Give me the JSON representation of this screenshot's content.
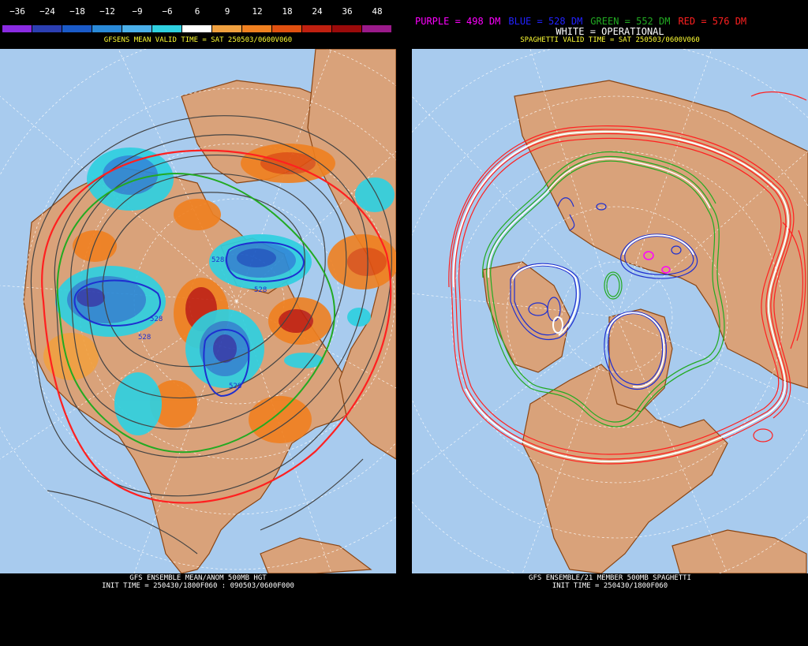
{
  "left": {
    "scale": {
      "values": [
        "−36",
        "−24",
        "−18",
        "−12",
        "−9",
        "−6",
        "6",
        "9",
        "12",
        "18",
        "24",
        "36",
        "48"
      ],
      "colors": [
        "#8a2be2",
        "#2c3fb2",
        "#1a5ac8",
        "#2a8ad8",
        "#4bb0ea",
        "#2fd0e0",
        "#ffffff",
        "#f0a040",
        "#f08020",
        "#e05010",
        "#c02010",
        "#9a0a0a",
        "#9a1a8a"
      ]
    },
    "valid_time": "GFSENS MEAN VALID TIME = SAT 250503/0600V060",
    "footer_line1": "GFS ENSEMBLE MEAN/ANOM 500MB HGT",
    "footer_line2": "INIT TIME = 250430/1800F060 : 090503/0600F000",
    "contour_labels": [
      "528",
      "528",
      "528",
      "528",
      "528"
    ]
  },
  "right": {
    "legend": [
      {
        "text": "PURPLE = 498 DM",
        "color": "#ff00ff"
      },
      {
        "text": "BLUE = 528 DM",
        "color": "#2222ff"
      },
      {
        "text": "GREEN = 552 DM",
        "color": "#22aa22"
      },
      {
        "text": "RED = 576 DM",
        "color": "#ff2020"
      }
    ],
    "operational": "WHITE = OPERATIONAL",
    "valid_time": "SPAGHETTI VALID TIME = SAT 250503/0600V060",
    "footer_line1": "GFS ENSEMBLE/21 MEMBER 500MB SPAGHETTI",
    "footer_line2": "INIT TIME = 250430/1800F060"
  },
  "colors": {
    "ocean": "#a8cbee",
    "land": "#d9a27a",
    "coast": "#8b4513",
    "grid": "#ffffff"
  }
}
